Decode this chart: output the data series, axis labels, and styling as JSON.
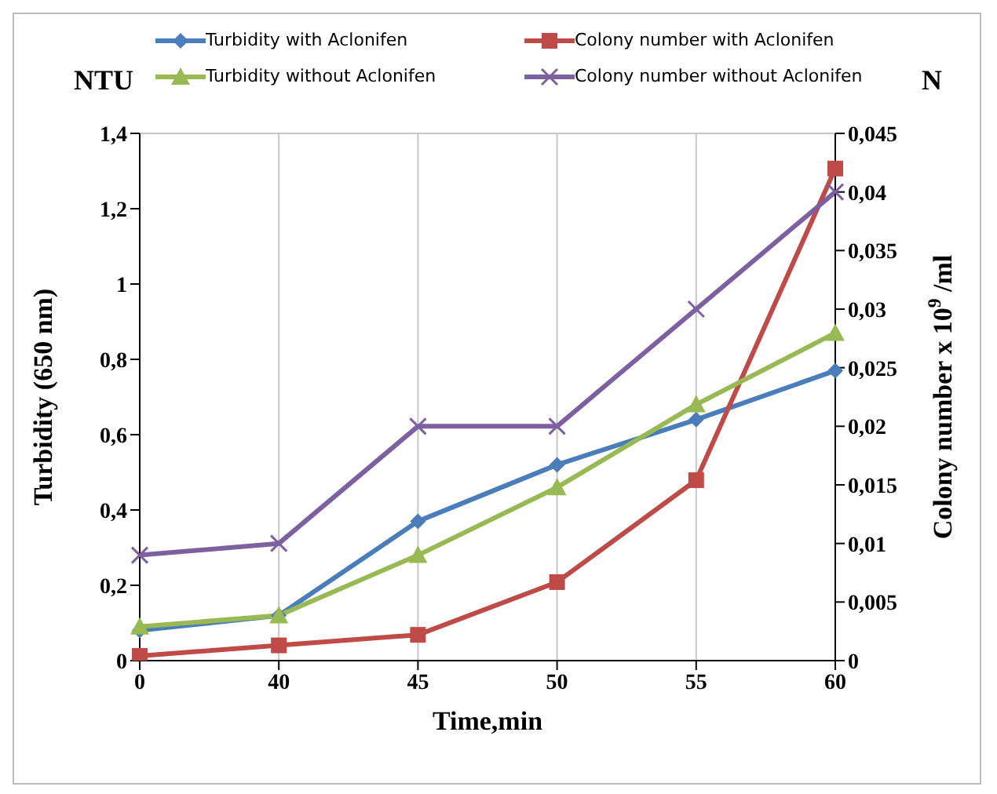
{
  "chart_data": {
    "type": "line",
    "xlabel": "Time,min",
    "ylabel": "Turbidity (650 nm)",
    "y2label": "Colony number x 10$^{9}$ /ml",
    "annotations": [
      "NTU",
      "N"
    ],
    "categories": [
      "0",
      "40",
      "45",
      "50",
      "55",
      "60"
    ],
    "series": [
      {
        "name": "Turbidity with Aclonifen",
        "color": "#4a7ebb",
        "marker": "diamond",
        "values": [
          0.08,
          0.12,
          0.37,
          0.52,
          0.64,
          0.77
        ]
      },
      {
        "name": "Colony number with Aclonifen",
        "color": "#be4b48",
        "marker": "square",
        "axis": "y2",
        "values": [
          0.0004,
          0.0013,
          0.0022,
          0.0067,
          0.0154,
          0.042
        ]
      },
      {
        "name": "Turbidity without Aclonifen",
        "color": "#98b954",
        "marker": "triangle",
        "values": [
          0.09,
          0.12,
          0.28,
          0.46,
          0.68,
          0.87
        ]
      },
      {
        "name": "Colony number without Aclonifen",
        "color": "#7d60a0",
        "marker": "cross",
        "axis": "y2",
        "values": [
          0.009,
          0.01,
          0.02,
          0.02,
          0.03,
          0.04
        ]
      }
    ],
    "ylim": [
      0,
      1.4
    ],
    "yticks": [
      {
        "value": 0,
        "label": "0"
      },
      {
        "value": 0.2,
        "label": "0,2"
      },
      {
        "value": 0.4,
        "label": "0,4"
      },
      {
        "value": 0.6,
        "label": "0,6"
      },
      {
        "value": 0.8,
        "label": "0,8"
      },
      {
        "value": 1,
        "label": "1"
      },
      {
        "value": 1.2,
        "label": "1,2"
      },
      {
        "value": 1.4,
        "label": "1,4"
      }
    ],
    "y2lim": [
      0,
      0.045
    ],
    "y2ticks": [
      {
        "value": 0,
        "label": "0"
      },
      {
        "value": 0.005,
        "label": "0,005"
      },
      {
        "value": 0.01,
        "label": "0,01"
      },
      {
        "value": 0.015,
        "label": "0,015"
      },
      {
        "value": 0.02,
        "label": "0,02"
      },
      {
        "value": 0.025,
        "label": "0,025"
      },
      {
        "value": 0.03,
        "label": "0,03"
      },
      {
        "value": 0.035,
        "label": "0,035"
      },
      {
        "value": 0.04,
        "label": "0,04"
      },
      {
        "value": 0.045,
        "label": "0,045"
      }
    ],
    "grid": true,
    "legend": "top",
    "line_style": "solid"
  }
}
